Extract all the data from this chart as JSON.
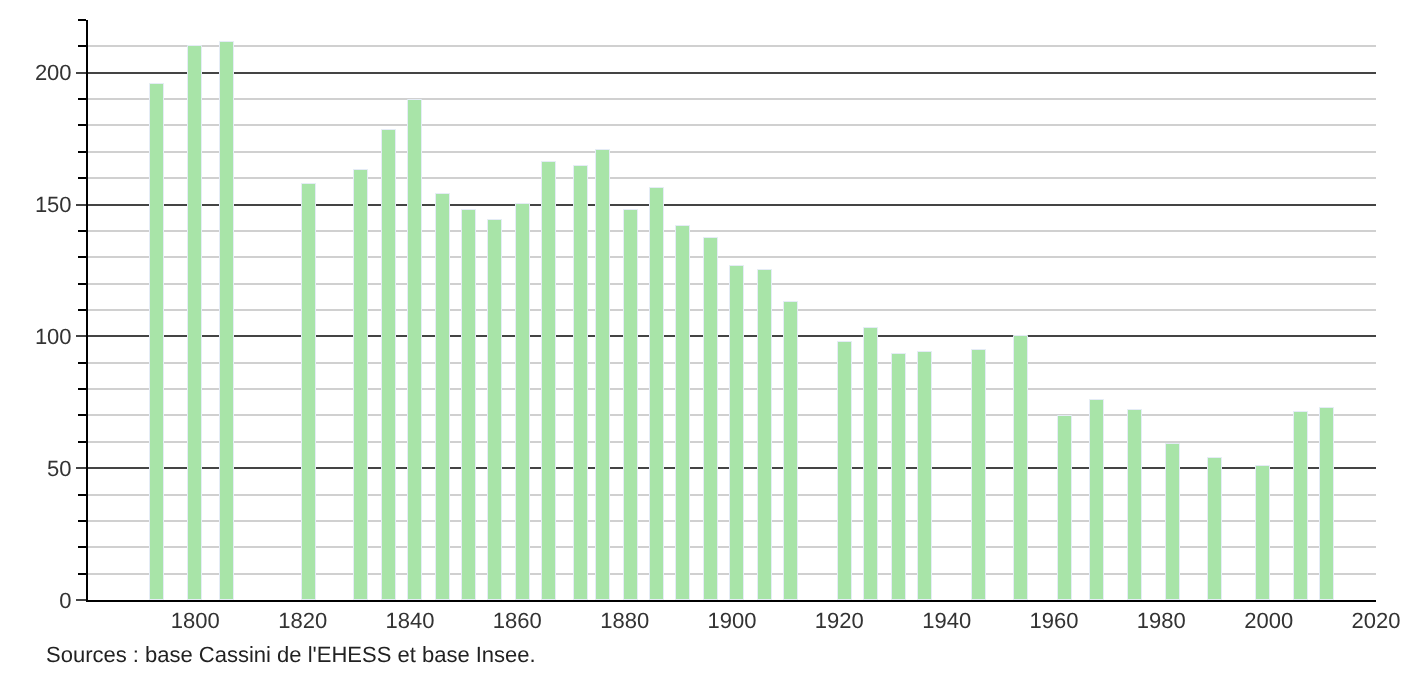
{
  "chart_data": {
    "type": "bar",
    "x": [
      1793,
      1800,
      1806,
      1821,
      1831,
      1836,
      1841,
      1846,
      1851,
      1856,
      1861,
      1866,
      1872,
      1876,
      1881,
      1886,
      1891,
      1896,
      1901,
      1906,
      1911,
      1921,
      1926,
      1931,
      1936,
      1946,
      1954,
      1962,
      1968,
      1975,
      1982,
      1990,
      1999,
      2006,
      2011
    ],
    "values": [
      196,
      210,
      212,
      158,
      163,
      178,
      190,
      154,
      148,
      144,
      150,
      166,
      165,
      171,
      148,
      156,
      142,
      137,
      127,
      125,
      113,
      98,
      103,
      93,
      94,
      95,
      100,
      70,
      76,
      72,
      59,
      54,
      51,
      71,
      73
    ],
    "color": "#a8e4a8",
    "xlim": [
      1780,
      2020
    ],
    "xticks": [
      1800,
      1820,
      1840,
      1860,
      1880,
      1900,
      1920,
      1940,
      1960,
      1980,
      2000,
      2020
    ],
    "ylim": [
      0,
      220
    ],
    "yticks": [
      0,
      50,
      100,
      150,
      200
    ],
    "grid": "y",
    "annotations": [
      "Sources : base Cassini de l'EHESS et base Insee."
    ]
  }
}
